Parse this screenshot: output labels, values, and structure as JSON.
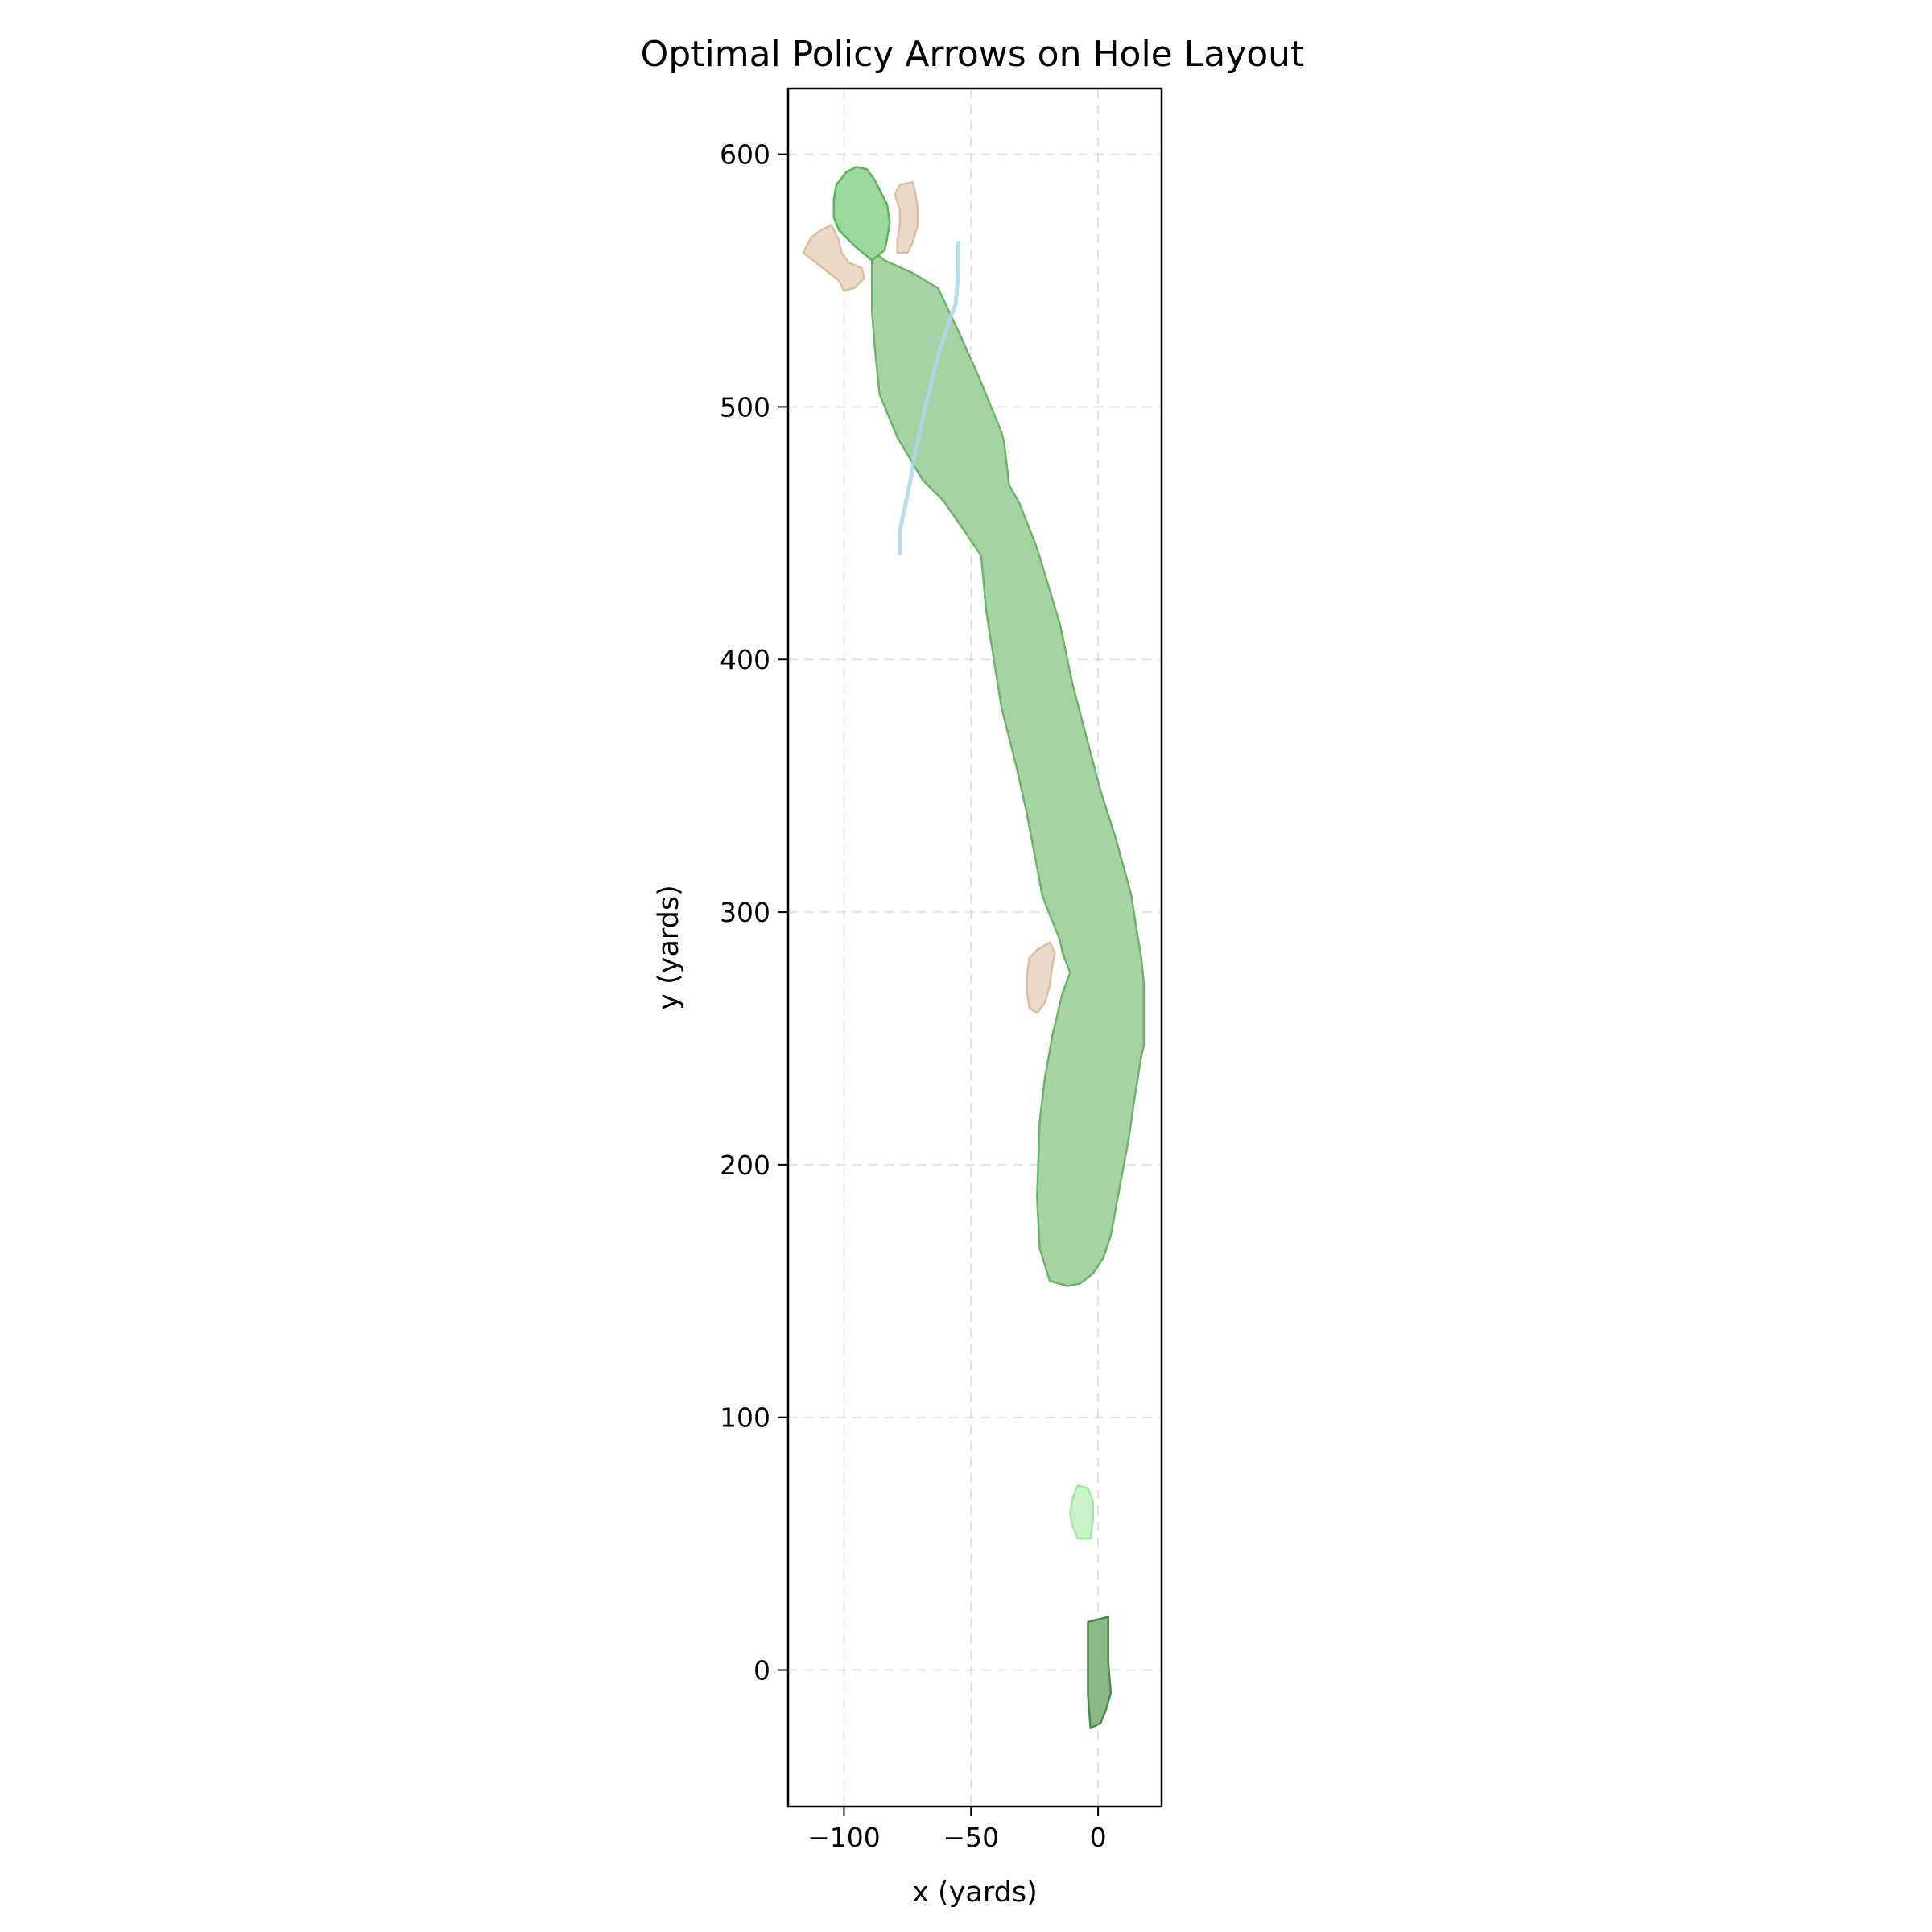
{
  "chart_data": {
    "type": "area",
    "title": "Optimal Policy Arrows on Hole Layout",
    "xlabel": "x (yards)",
    "ylabel": "y (yards)",
    "xlim": [
      -122,
      25
    ],
    "ylim": [
      -54,
      626
    ],
    "xticks": [
      -100,
      -50,
      0
    ],
    "xtick_labels": [
      "−100",
      "−50",
      "0"
    ],
    "yticks": [
      0,
      100,
      200,
      300,
      400,
      500,
      600
    ],
    "ytick_labels": [
      "0",
      "100",
      "200",
      "300",
      "400",
      "500",
      "600"
    ],
    "grid": true,
    "colors": {
      "fairway": "#a6d3a6",
      "fairway_edge": "#6fb06f",
      "green": "#9ad99a",
      "green_edge": "#5fb05f",
      "bunker": "#ead9c6",
      "bunker_edge": "#d9bfa3",
      "tee": "#8cb88c",
      "tee_edge": "#4f8a4f",
      "forward_tee": "#c8f2c8",
      "forward_tee_edge": "#a6e6a6",
      "water": "#add8e6"
    },
    "shapes": [
      {
        "name": "fairway",
        "kind": "polygon",
        "points": [
          [
            -84,
            558
          ],
          [
            -73,
            553
          ],
          [
            -63,
            547
          ],
          [
            -55,
            530
          ],
          [
            -47,
            512
          ],
          [
            -38,
            490
          ],
          [
            -37,
            486
          ],
          [
            -35,
            469
          ],
          [
            -31,
            462
          ],
          [
            -24,
            444
          ],
          [
            -15,
            414
          ],
          [
            -10,
            390
          ],
          [
            -4,
            367
          ],
          [
            1,
            348
          ],
          [
            7,
            329
          ],
          [
            13,
            307
          ],
          [
            15,
            294
          ],
          [
            17,
            282
          ],
          [
            18,
            272
          ],
          [
            18,
            247
          ],
          [
            17,
            243
          ],
          [
            14,
            224
          ],
          [
            12,
            210
          ],
          [
            9,
            194
          ],
          [
            5,
            172
          ],
          [
            2,
            163
          ],
          [
            -2,
            157
          ],
          [
            -7,
            153
          ],
          [
            -12,
            152
          ],
          [
            -19,
            154
          ],
          [
            -23,
            167
          ],
          [
            -24,
            187
          ],
          [
            -23,
            217
          ],
          [
            -21,
            234
          ],
          [
            -18,
            251
          ],
          [
            -14,
            268
          ],
          [
            -11,
            276
          ],
          [
            -14,
            284
          ],
          [
            -15,
            289
          ],
          [
            -21,
            304
          ],
          [
            -22,
            307
          ],
          [
            -28,
            339
          ],
          [
            -32,
            357
          ],
          [
            -38,
            381
          ],
          [
            -44,
            419
          ],
          [
            -46,
            441
          ],
          [
            -52,
            450
          ],
          [
            -61,
            463
          ],
          [
            -69,
            471
          ],
          [
            -79,
            488
          ],
          [
            -86,
            505
          ],
          [
            -88,
            525
          ],
          [
            -89,
            538
          ],
          [
            -89,
            559
          ],
          [
            -91,
            562
          ],
          [
            -97,
            568
          ]
        ]
      },
      {
        "name": "green",
        "kind": "polygon",
        "points": [
          [
            -89,
            558
          ],
          [
            -84,
            562
          ],
          [
            -83,
            567
          ],
          [
            -82,
            573
          ],
          [
            -83,
            580
          ],
          [
            -86,
            586
          ],
          [
            -88,
            590
          ],
          [
            -91,
            594
          ],
          [
            -95,
            595
          ],
          [
            -99,
            593
          ],
          [
            -103,
            588
          ],
          [
            -104,
            582
          ],
          [
            -104,
            575
          ],
          [
            -102,
            570
          ],
          [
            -99,
            567
          ],
          [
            -95,
            563
          ]
        ]
      },
      {
        "name": "bunker",
        "kind": "polygon",
        "points": [
          [
            -116,
            561
          ],
          [
            -113,
            567
          ],
          [
            -109,
            570
          ],
          [
            -105,
            572
          ],
          [
            -102,
            566
          ],
          [
            -101,
            561
          ],
          [
            -98,
            557
          ],
          [
            -93,
            555
          ],
          [
            -92,
            551
          ],
          [
            -96,
            547
          ],
          [
            -100,
            546
          ],
          [
            -102,
            550
          ]
        ]
      },
      {
        "name": "bunker",
        "kind": "polygon",
        "points": [
          [
            -79,
            561
          ],
          [
            -75,
            561
          ],
          [
            -73,
            565
          ],
          [
            -71,
            572
          ],
          [
            -71,
            579
          ],
          [
            -72,
            585
          ],
          [
            -73,
            589
          ],
          [
            -78,
            588
          ],
          [
            -80,
            584
          ],
          [
            -78,
            578
          ],
          [
            -78,
            572
          ],
          [
            -79,
            566
          ]
        ]
      },
      {
        "name": "bunker",
        "kind": "polygon",
        "points": [
          [
            -27,
            262
          ],
          [
            -24,
            260
          ],
          [
            -21,
            264
          ],
          [
            -19,
            271
          ],
          [
            -18,
            279
          ],
          [
            -17,
            284
          ],
          [
            -19,
            288
          ],
          [
            -24,
            285
          ],
          [
            -27,
            282
          ],
          [
            -28,
            275
          ],
          [
            -28,
            268
          ]
        ]
      },
      {
        "name": "forward-tee",
        "kind": "polygon",
        "points": [
          [
            -8,
            52
          ],
          [
            -3,
            52
          ],
          [
            -2,
            60
          ],
          [
            -2,
            67
          ],
          [
            -4,
            72
          ],
          [
            -8,
            73
          ],
          [
            -10,
            68
          ],
          [
            -11,
            62
          ],
          [
            -10,
            57
          ]
        ]
      },
      {
        "name": "tee",
        "kind": "polygon",
        "points": [
          [
            -3,
            -23
          ],
          [
            1,
            -21
          ],
          [
            3,
            -16
          ],
          [
            5,
            -9
          ],
          [
            4,
            3
          ],
          [
            4,
            21
          ],
          [
            -4,
            19
          ],
          [
            -4,
            5
          ],
          [
            -4,
            -10
          ]
        ]
      },
      {
        "name": "water",
        "kind": "line",
        "points": [
          [
            -78,
            442
          ],
          [
            -78,
            451
          ],
          [
            -74,
            470
          ],
          [
            -72,
            482
          ],
          [
            -68,
            500
          ],
          [
            -63,
            520
          ],
          [
            -59,
            533
          ],
          [
            -56,
            541
          ],
          [
            -55,
            553
          ],
          [
            -55,
            565
          ]
        ]
      }
    ]
  }
}
